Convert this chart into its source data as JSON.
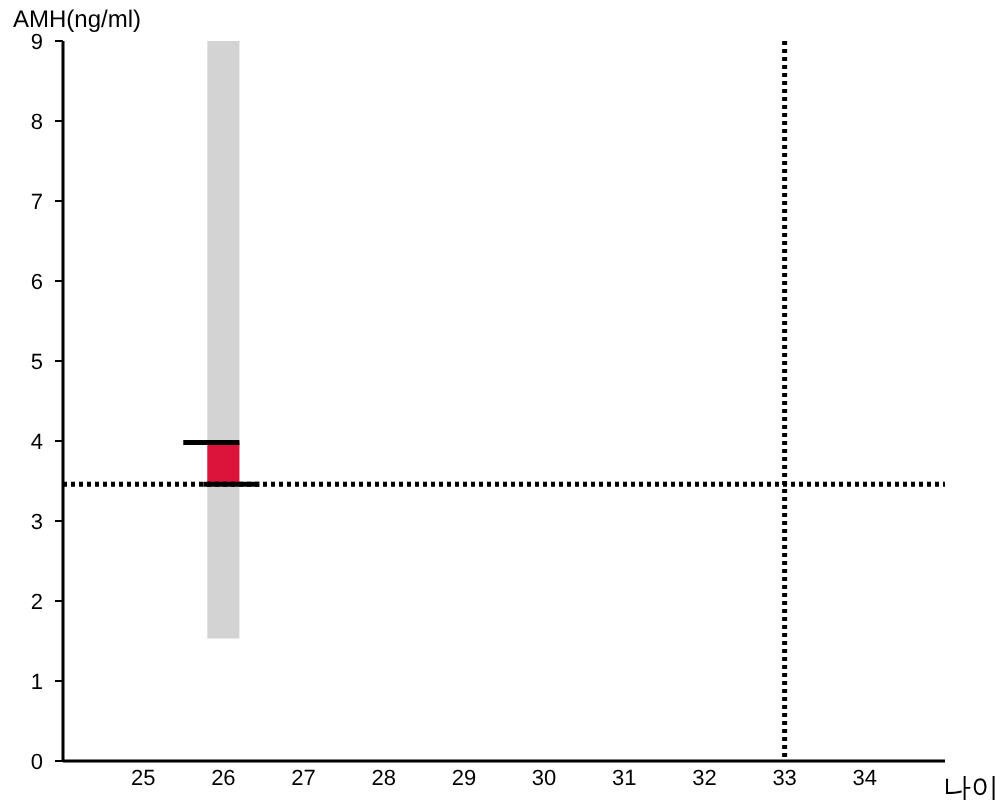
{
  "chart_data": {
    "type": "bar",
    "xlabel": "나이",
    "ylabel": "AMH(ng/ml)",
    "x": [
      26
    ],
    "series": [
      {
        "color": "#d3d3d3",
        "base": [
          1.53
        ],
        "values": [
          7.47
        ]
      },
      {
        "color": "#dc143c",
        "base": [
          3.46
        ],
        "values": [
          0.52
        ]
      },
      {
        "type": "line",
        "color": "#000000",
        "x": [
          25.5,
          26.2
        ],
        "values": [
          3.98,
          3.98
        ]
      },
      {
        "type": "line",
        "color": "#000000",
        "x": [
          25.75,
          26.45
        ],
        "values": [
          3.46,
          3.46
        ]
      }
    ],
    "xlim": [
      24,
      35
    ],
    "ylim": [
      0,
      9
    ],
    "xticks": [
      25,
      26,
      27,
      28,
      29,
      30,
      31,
      32,
      33,
      34
    ],
    "yticks": [
      0,
      1,
      2,
      3,
      4,
      5,
      6,
      7,
      8,
      9
    ],
    "ref_lines": [
      {
        "axis": "y",
        "value": 3.46,
        "color": "#000000",
        "line_style": "dotted"
      },
      {
        "axis": "x",
        "value": 33,
        "color": "#000000",
        "line_style": "dotted"
      }
    ],
    "grid": false
  }
}
